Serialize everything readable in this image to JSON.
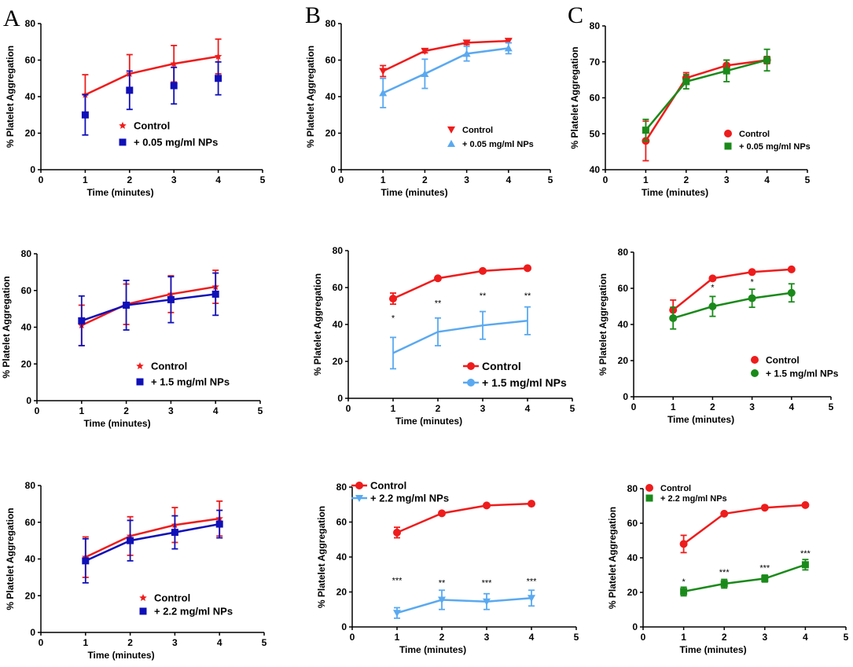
{
  "panel_letters": [
    "A",
    "B",
    "C"
  ],
  "colors": {
    "control": "#ee1c1c",
    "np_A": "#1010b8",
    "np_B": "#5aa9f0",
    "np_C": "#1a8a1a",
    "axis": "#000000"
  },
  "chart_data": [
    {
      "id": "A1",
      "type": "line",
      "xlabel": "Time (minutes)",
      "ylabel": "% Platelet Aggregation",
      "xlim": [
        0,
        5
      ],
      "ylim": [
        0,
        80
      ],
      "xticks": [
        0,
        1,
        2,
        3,
        4,
        5
      ],
      "yticks": [
        0,
        20,
        40,
        60,
        80
      ],
      "legend_position": "lower-center",
      "series": [
        {
          "name": "Control",
          "color": "#ee1c1c",
          "marker": "star",
          "x": [
            1,
            2,
            3,
            4
          ],
          "values": [
            41,
            52.5,
            58,
            62
          ],
          "err": [
            11,
            10.5,
            10,
            9.5
          ]
        },
        {
          "name": "+ 0.05 mg/ml NPs",
          "color": "#1010b8",
          "marker": "square",
          "x": [
            1,
            2,
            3,
            4
          ],
          "values": [
            30,
            43.5,
            46,
            50
          ],
          "err": [
            11,
            10.5,
            10,
            9
          ],
          "line": false
        }
      ],
      "annotations": []
    },
    {
      "id": "B1",
      "type": "line",
      "xlabel": "Time (minutes)",
      "ylabel": "% Platelet Aggregation",
      "xlim": [
        0,
        5
      ],
      "ylim": [
        0,
        80
      ],
      "xticks": [
        0,
        1,
        2,
        3,
        4,
        5
      ],
      "yticks": [
        0,
        20,
        40,
        60,
        80
      ],
      "legend_position": "lower-center",
      "series": [
        {
          "name": "Control",
          "color": "#ee1c1c",
          "marker": "triangle-down",
          "x": [
            1,
            2,
            3,
            4
          ],
          "values": [
            54,
            65,
            69.5,
            70.5
          ],
          "err": [
            3,
            1,
            1,
            1
          ]
        },
        {
          "name": "+ 0.05 mg/ml NPs",
          "color": "#5aa9f0",
          "marker": "triangle-up",
          "x": [
            1,
            2,
            3,
            4
          ],
          "values": [
            42,
            52.5,
            63.5,
            66.5
          ],
          "err": [
            8,
            8,
            4,
            3
          ]
        }
      ],
      "annotations": []
    },
    {
      "id": "C1",
      "type": "line",
      "xlabel": "Time (minutes)",
      "ylabel": "% Platelet Aggregation",
      "xlim": [
        0,
        5
      ],
      "ylim": [
        40,
        80
      ],
      "xticks": [
        0,
        1,
        2,
        3,
        4,
        5
      ],
      "yticks": [
        40,
        50,
        60,
        70,
        80
      ],
      "legend_position": "lower-center",
      "series": [
        {
          "name": "Control",
          "color": "#ee1c1c",
          "marker": "circle",
          "x": [
            1,
            2,
            3,
            4
          ],
          "values": [
            48,
            65.5,
            69,
            70.5
          ],
          "err": [
            5.5,
            1.5,
            1.5,
            1
          ]
        },
        {
          "name": "+ 0.05 mg/ml NPs",
          "color": "#1a8a1a",
          "marker": "square",
          "x": [
            1,
            2,
            3,
            4
          ],
          "values": [
            51,
            64.5,
            67.5,
            70.5
          ],
          "err": [
            3,
            2,
            3,
            3
          ]
        }
      ],
      "annotations": []
    },
    {
      "id": "A2",
      "type": "line",
      "xlabel": "Time (minutes)",
      "ylabel": "% Platelet Aggregation",
      "xlim": [
        0,
        5
      ],
      "ylim": [
        0,
        80
      ],
      "xticks": [
        0,
        1,
        2,
        3,
        4,
        5
      ],
      "yticks": [
        0,
        20,
        40,
        60,
        80
      ],
      "legend_position": "lower-center",
      "series": [
        {
          "name": "Control",
          "color": "#ee1c1c",
          "marker": "star",
          "x": [
            1,
            2,
            3,
            4
          ],
          "values": [
            41,
            52.5,
            58,
            62
          ],
          "err": [
            11,
            11,
            10,
            9
          ]
        },
        {
          "name": "+ 1.5 mg/ml NPs",
          "color": "#1010b8",
          "marker": "square",
          "x": [
            1,
            2,
            3,
            4
          ],
          "values": [
            43.5,
            52,
            55,
            58
          ],
          "err": [
            13.5,
            13.5,
            12.5,
            11.5
          ]
        }
      ],
      "annotations": []
    },
    {
      "id": "B2",
      "type": "line",
      "xlabel": "Time (minutes)",
      "ylabel": "% Platelet Aggregation",
      "xlim": [
        0,
        5
      ],
      "ylim": [
        0,
        80
      ],
      "xticks": [
        0,
        1,
        2,
        3,
        4,
        5
      ],
      "yticks": [
        0,
        20,
        40,
        60,
        80
      ],
      "legend_position": "lower-right",
      "series": [
        {
          "name": "Control",
          "color": "#ee1c1c",
          "marker": "circle",
          "x": [
            1,
            2,
            3,
            4
          ],
          "values": [
            54,
            65,
            69,
            70.5
          ],
          "err": [
            3,
            1,
            0.5,
            0.5
          ]
        },
        {
          "name": "+ 1.5 mg/ml NPs",
          "color": "#5aa9f0",
          "marker": "none",
          "x": [
            1,
            2,
            3,
            4
          ],
          "values": [
            24.5,
            36,
            39.5,
            42
          ],
          "err": [
            8.5,
            7.5,
            7.5,
            7.5
          ]
        }
      ],
      "annotations": [
        {
          "x": 1,
          "y": 42,
          "text": "*"
        },
        {
          "x": 2,
          "y": 50,
          "text": "**"
        },
        {
          "x": 3,
          "y": 54,
          "text": "**"
        },
        {
          "x": 4,
          "y": 54,
          "text": "**"
        }
      ]
    },
    {
      "id": "C2",
      "type": "line",
      "xlabel": "Time (minutes)",
      "ylabel": "% Platelet Aggregation",
      "xlim": [
        0,
        5
      ],
      "ylim": [
        0,
        80
      ],
      "xticks": [
        0,
        1,
        2,
        3,
        4,
        5
      ],
      "yticks": [
        0,
        20,
        40,
        60,
        80
      ],
      "legend_position": "lower-right",
      "series": [
        {
          "name": "Control",
          "color": "#ee1c1c",
          "marker": "circle",
          "x": [
            1,
            2,
            3,
            4
          ],
          "values": [
            48,
            65.5,
            69,
            70.5
          ],
          "err": [
            5.5,
            1,
            0.5,
            0.5
          ]
        },
        {
          "name": "+ 1.5 mg/ml NPs",
          "color": "#1a8a1a",
          "marker": "circle",
          "x": [
            1,
            2,
            3,
            4
          ],
          "values": [
            43.5,
            50,
            54.5,
            57.5
          ],
          "err": [
            6,
            5.5,
            5,
            5
          ]
        }
      ],
      "annotations": [
        {
          "x": 2,
          "y": 59,
          "text": "*"
        },
        {
          "x": 3,
          "y": 62,
          "text": "*"
        }
      ]
    },
    {
      "id": "A3",
      "type": "line",
      "xlabel": "Time (minutes)",
      "ylabel": "% Platelet Aggregation",
      "xlim": [
        0,
        5
      ],
      "ylim": [
        0,
        80
      ],
      "xticks": [
        0,
        1,
        2,
        3,
        4,
        5
      ],
      "yticks": [
        0,
        20,
        40,
        60,
        80
      ],
      "legend_position": "lower-center",
      "series": [
        {
          "name": "Control",
          "color": "#ee1c1c",
          "marker": "star",
          "x": [
            1,
            2,
            3,
            4
          ],
          "values": [
            41,
            52.5,
            58.5,
            62
          ],
          "err": [
            11,
            10.5,
            9.5,
            9.5
          ]
        },
        {
          "name": "+ 2.2 mg/ml NPs",
          "color": "#1010b8",
          "marker": "square",
          "x": [
            1,
            2,
            3,
            4
          ],
          "values": [
            39,
            50,
            54.5,
            59
          ],
          "err": [
            12,
            11,
            9,
            7.5
          ]
        }
      ],
      "annotations": []
    },
    {
      "id": "B3",
      "type": "line",
      "xlabel": "Time (minutes)",
      "ylabel": "% Platelet Aggregation",
      "xlim": [
        0,
        5
      ],
      "ylim": [
        0,
        80
      ],
      "xticks": [
        0,
        1,
        2,
        3,
        4,
        5
      ],
      "yticks": [
        0,
        20,
        40,
        60,
        80
      ],
      "legend_position": "top-left",
      "series": [
        {
          "name": "Control",
          "color": "#ee1c1c",
          "marker": "circle",
          "x": [
            1,
            2,
            3,
            4
          ],
          "values": [
            54,
            65,
            69.5,
            70.5
          ],
          "err": [
            3,
            0.5,
            0.5,
            0.5
          ]
        },
        {
          "name": "+ 2.2 mg/ml NPs",
          "color": "#5aa9f0",
          "marker": "triangle-down",
          "x": [
            1,
            2,
            3,
            4
          ],
          "values": [
            8,
            15.5,
            14.5,
            16.5
          ],
          "err": [
            3,
            5.5,
            4.5,
            4.5
          ]
        }
      ],
      "annotations": [
        {
          "x": 1,
          "y": 25,
          "text": "***"
        },
        {
          "x": 2,
          "y": 23.5,
          "text": "**"
        },
        {
          "x": 3,
          "y": 23.5,
          "text": "***"
        },
        {
          "x": 4,
          "y": 24.5,
          "text": "***"
        }
      ]
    },
    {
      "id": "C3",
      "type": "line",
      "xlabel": "Time (minutes)",
      "ylabel": "% Platelet Aggregation",
      "xlim": [
        0,
        5
      ],
      "ylim": [
        0,
        80
      ],
      "xticks": [
        0,
        1,
        2,
        3,
        4,
        5
      ],
      "yticks": [
        0,
        20,
        40,
        60,
        80
      ],
      "legend_position": "top-left",
      "series": [
        {
          "name": "Control",
          "color": "#ee1c1c",
          "marker": "circle",
          "x": [
            1,
            2,
            3,
            4
          ],
          "values": [
            48,
            65.5,
            69,
            70.5
          ],
          "err": [
            5,
            0.5,
            0.5,
            0.5
          ]
        },
        {
          "name": "+ 2.2 mg/ml NPs",
          "color": "#1a8a1a",
          "marker": "square",
          "x": [
            1,
            2,
            3,
            4
          ],
          "values": [
            20.5,
            25,
            28,
            36
          ],
          "err": [
            2.5,
            2.5,
            2,
            3
          ]
        }
      ],
      "annotations": [
        {
          "x": 1,
          "y": 24.5,
          "text": "*"
        },
        {
          "x": 2,
          "y": 30,
          "text": "***"
        },
        {
          "x": 3,
          "y": 32.5,
          "text": "***"
        },
        {
          "x": 4,
          "y": 41,
          "text": "***"
        }
      ]
    }
  ]
}
